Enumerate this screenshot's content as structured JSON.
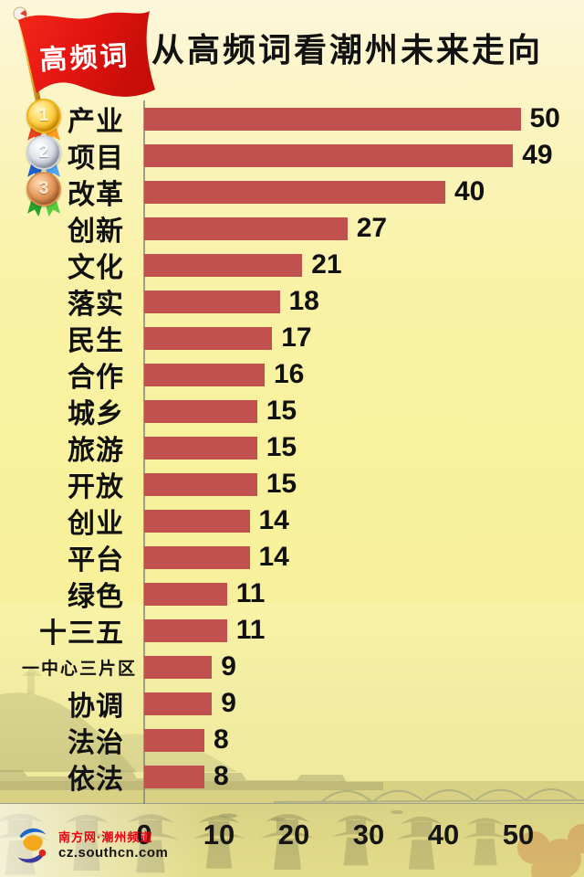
{
  "flag": {
    "label": "高频词"
  },
  "header": {
    "title": "从高频词看潮州未来走向"
  },
  "chart_data": {
    "type": "bar",
    "orientation": "horizontal",
    "title": "从高频词看潮州未来走向",
    "categories": [
      "产业",
      "项目",
      "改革",
      "创新",
      "文化",
      "落实",
      "民生",
      "合作",
      "城乡",
      "旅游",
      "开放",
      "创业",
      "平台",
      "绿色",
      "十三五",
      "一中心三片区",
      "协调",
      "法治",
      "依法"
    ],
    "values": [
      50,
      49,
      40,
      27,
      21,
      18,
      17,
      16,
      15,
      15,
      15,
      14,
      14,
      11,
      11,
      9,
      9,
      8,
      8
    ],
    "x_ticks": [
      0,
      10,
      20,
      30,
      40,
      50
    ],
    "xlim": [
      0,
      50
    ],
    "grid": false,
    "legend": "none",
    "value_labels_shown": true,
    "bar_color": "#c0514e",
    "medals": [
      {
        "rank": "1",
        "style": "gold"
      },
      {
        "rank": "2",
        "style": "silver"
      },
      {
        "rank": "3",
        "style": "bronze"
      }
    ]
  },
  "footer": {
    "brand": "南方网·潮州频道",
    "url": "cz.southcn.com"
  },
  "colors": {
    "bar": "#c0514e",
    "flag_red": "#e31410",
    "title_text": "#121212",
    "brand_red": "#e60012",
    "background_cream": "#fdf7dc",
    "background_yellow": "#f8f19c"
  }
}
